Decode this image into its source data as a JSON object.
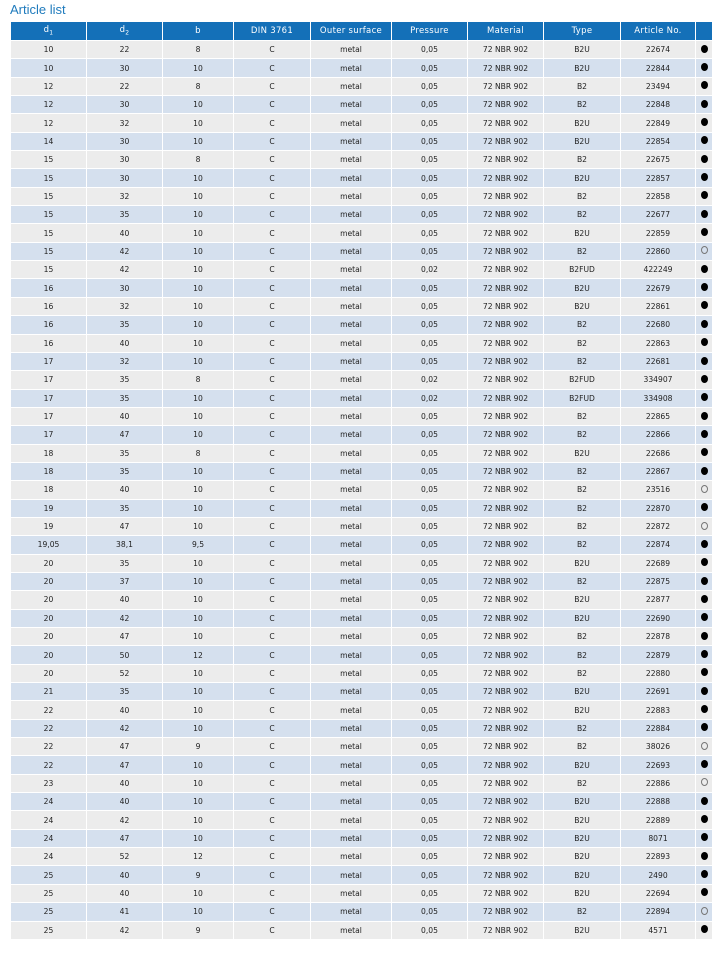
{
  "title": "Article list",
  "colors": {
    "header_bg": "#1470b8",
    "row_odd": "#ececec",
    "row_even": "#d5e0ee",
    "title": "#1f7bbd"
  },
  "columns": [
    {
      "label": "d",
      "sub": "1"
    },
    {
      "label": "d",
      "sub": "2"
    },
    {
      "label": "b"
    },
    {
      "label": "DIN 3761"
    },
    {
      "label": "Outer surface"
    },
    {
      "label": "Pressure"
    },
    {
      "label": "Material"
    },
    {
      "label": "Type"
    },
    {
      "label": "Article No."
    },
    {
      "label": ""
    }
  ],
  "stock_icons": {
    "filled": "filled-circle-icon",
    "empty": "empty-circle-icon"
  },
  "rows": [
    [
      "10",
      "22",
      "8",
      "C",
      "metal",
      "0,05",
      "72 NBR 902",
      "B2U",
      "22674",
      "filled"
    ],
    [
      "10",
      "30",
      "10",
      "C",
      "metal",
      "0,05",
      "72 NBR 902",
      "B2U",
      "22844",
      "filled"
    ],
    [
      "12",
      "22",
      "8",
      "C",
      "metal",
      "0,05",
      "72 NBR 902",
      "B2",
      "23494",
      "filled"
    ],
    [
      "12",
      "30",
      "10",
      "C",
      "metal",
      "0,05",
      "72 NBR 902",
      "B2",
      "22848",
      "filled"
    ],
    [
      "12",
      "32",
      "10",
      "C",
      "metal",
      "0,05",
      "72 NBR 902",
      "B2U",
      "22849",
      "filled"
    ],
    [
      "14",
      "30",
      "10",
      "C",
      "metal",
      "0,05",
      "72 NBR 902",
      "B2U",
      "22854",
      "filled"
    ],
    [
      "15",
      "30",
      "8",
      "C",
      "metal",
      "0,05",
      "72 NBR 902",
      "B2",
      "22675",
      "filled"
    ],
    [
      "15",
      "30",
      "10",
      "C",
      "metal",
      "0,05",
      "72 NBR 902",
      "B2U",
      "22857",
      "filled"
    ],
    [
      "15",
      "32",
      "10",
      "C",
      "metal",
      "0,05",
      "72 NBR 902",
      "B2",
      "22858",
      "filled"
    ],
    [
      "15",
      "35",
      "10",
      "C",
      "metal",
      "0,05",
      "72 NBR 902",
      "B2",
      "22677",
      "filled"
    ],
    [
      "15",
      "40",
      "10",
      "C",
      "metal",
      "0,05",
      "72 NBR 902",
      "B2U",
      "22859",
      "filled"
    ],
    [
      "15",
      "42",
      "10",
      "C",
      "metal",
      "0,05",
      "72 NBR 902",
      "B2",
      "22860",
      "empty"
    ],
    [
      "15",
      "42",
      "10",
      "C",
      "metal",
      "0,02",
      "72 NBR 902",
      "B2FUD",
      "422249",
      "filled"
    ],
    [
      "16",
      "30",
      "10",
      "C",
      "metal",
      "0,05",
      "72 NBR 902",
      "B2U",
      "22679",
      "filled"
    ],
    [
      "16",
      "32",
      "10",
      "C",
      "metal",
      "0,05",
      "72 NBR 902",
      "B2U",
      "22861",
      "filled"
    ],
    [
      "16",
      "35",
      "10",
      "C",
      "metal",
      "0,05",
      "72 NBR 902",
      "B2",
      "22680",
      "filled"
    ],
    [
      "16",
      "40",
      "10",
      "C",
      "metal",
      "0,05",
      "72 NBR 902",
      "B2",
      "22863",
      "filled"
    ],
    [
      "17",
      "32",
      "10",
      "C",
      "metal",
      "0,05",
      "72 NBR 902",
      "B2",
      "22681",
      "filled"
    ],
    [
      "17",
      "35",
      "8",
      "C",
      "metal",
      "0,02",
      "72 NBR 902",
      "B2FUD",
      "334907",
      "filled"
    ],
    [
      "17",
      "35",
      "10",
      "C",
      "metal",
      "0,02",
      "72 NBR 902",
      "B2FUD",
      "334908",
      "filled"
    ],
    [
      "17",
      "40",
      "10",
      "C",
      "metal",
      "0,05",
      "72 NBR 902",
      "B2",
      "22865",
      "filled"
    ],
    [
      "17",
      "47",
      "10",
      "C",
      "metal",
      "0,05",
      "72 NBR 902",
      "B2",
      "22866",
      "filled"
    ],
    [
      "18",
      "35",
      "8",
      "C",
      "metal",
      "0,05",
      "72 NBR 902",
      "B2U",
      "22686",
      "filled"
    ],
    [
      "18",
      "35",
      "10",
      "C",
      "metal",
      "0,05",
      "72 NBR 902",
      "B2",
      "22867",
      "filled"
    ],
    [
      "18",
      "40",
      "10",
      "C",
      "metal",
      "0,05",
      "72 NBR 902",
      "B2",
      "23516",
      "empty"
    ],
    [
      "19",
      "35",
      "10",
      "C",
      "metal",
      "0,05",
      "72 NBR 902",
      "B2",
      "22870",
      "filled"
    ],
    [
      "19",
      "47",
      "10",
      "C",
      "metal",
      "0,05",
      "72 NBR 902",
      "B2",
      "22872",
      "empty"
    ],
    [
      "19,05",
      "38,1",
      "9,5",
      "C",
      "metal",
      "0,05",
      "72 NBR 902",
      "B2",
      "22874",
      "filled"
    ],
    [
      "20",
      "35",
      "10",
      "C",
      "metal",
      "0,05",
      "72 NBR 902",
      "B2U",
      "22689",
      "filled"
    ],
    [
      "20",
      "37",
      "10",
      "C",
      "metal",
      "0,05",
      "72 NBR 902",
      "B2",
      "22875",
      "filled"
    ],
    [
      "20",
      "40",
      "10",
      "C",
      "metal",
      "0,05",
      "72 NBR 902",
      "B2U",
      "22877",
      "filled"
    ],
    [
      "20",
      "42",
      "10",
      "C",
      "metal",
      "0,05",
      "72 NBR 902",
      "B2U",
      "22690",
      "filled"
    ],
    [
      "20",
      "47",
      "10",
      "C",
      "metal",
      "0,05",
      "72 NBR 902",
      "B2",
      "22878",
      "filled"
    ],
    [
      "20",
      "50",
      "12",
      "C",
      "metal",
      "0,05",
      "72 NBR 902",
      "B2",
      "22879",
      "filled"
    ],
    [
      "20",
      "52",
      "10",
      "C",
      "metal",
      "0,05",
      "72 NBR 902",
      "B2",
      "22880",
      "filled"
    ],
    [
      "21",
      "35",
      "10",
      "C",
      "metal",
      "0,05",
      "72 NBR 902",
      "B2U",
      "22691",
      "filled"
    ],
    [
      "22",
      "40",
      "10",
      "C",
      "metal",
      "0,05",
      "72 NBR 902",
      "B2U",
      "22883",
      "filled"
    ],
    [
      "22",
      "42",
      "10",
      "C",
      "metal",
      "0,05",
      "72 NBR 902",
      "B2",
      "22884",
      "filled"
    ],
    [
      "22",
      "47",
      "9",
      "C",
      "metal",
      "0,05",
      "72 NBR 902",
      "B2",
      "38026",
      "empty"
    ],
    [
      "22",
      "47",
      "10",
      "C",
      "metal",
      "0,05",
      "72 NBR 902",
      "B2U",
      "22693",
      "filled"
    ],
    [
      "23",
      "40",
      "10",
      "C",
      "metal",
      "0,05",
      "72 NBR 902",
      "B2",
      "22886",
      "empty"
    ],
    [
      "24",
      "40",
      "10",
      "C",
      "metal",
      "0,05",
      "72 NBR 902",
      "B2U",
      "22888",
      "filled"
    ],
    [
      "24",
      "42",
      "10",
      "C",
      "metal",
      "0,05",
      "72 NBR 902",
      "B2U",
      "22889",
      "filled"
    ],
    [
      "24",
      "47",
      "10",
      "C",
      "metal",
      "0,05",
      "72 NBR 902",
      "B2U",
      "8071",
      "filled"
    ],
    [
      "24",
      "52",
      "12",
      "C",
      "metal",
      "0,05",
      "72 NBR 902",
      "B2U",
      "22893",
      "filled"
    ],
    [
      "25",
      "40",
      "9",
      "C",
      "metal",
      "0,05",
      "72 NBR 902",
      "B2U",
      "2490",
      "filled"
    ],
    [
      "25",
      "40",
      "10",
      "C",
      "metal",
      "0,05",
      "72 NBR 902",
      "B2U",
      "22694",
      "filled"
    ],
    [
      "25",
      "41",
      "10",
      "C",
      "metal",
      "0,05",
      "72 NBR 902",
      "B2",
      "22894",
      "empty"
    ],
    [
      "25",
      "42",
      "9",
      "C",
      "metal",
      "0,05",
      "72 NBR 902",
      "B2U",
      "4571",
      "filled"
    ]
  ]
}
